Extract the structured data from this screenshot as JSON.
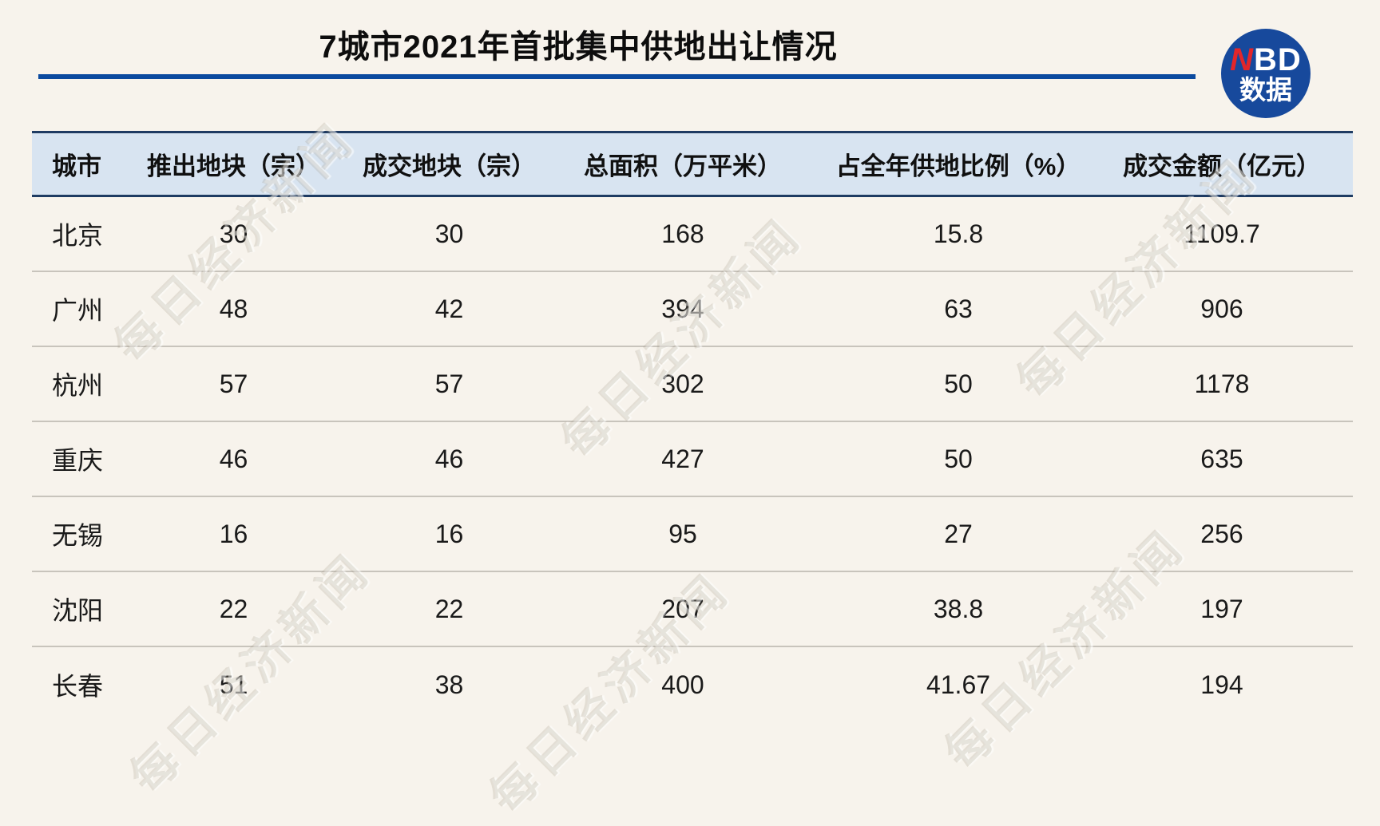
{
  "title": "7城市2021年首批集中供地出让情况",
  "logo": {
    "n": "N",
    "bd": "BD",
    "sub": "数据"
  },
  "watermark_text": "每日经济新闻",
  "colors": {
    "background": "#f7f3ec",
    "accent_blue": "#0b4a9f",
    "header_band": "#d8e4f1",
    "header_border": "#1e3b62",
    "row_divider": "#c8c4bc",
    "logo_blue": "#17499c",
    "logo_red": "#e3262a"
  },
  "chart_data": {
    "type": "table",
    "title": "7城市2021年首批集中供地出让情况",
    "columns": [
      "城市",
      "推出地块（宗）",
      "成交地块（宗）",
      "总面积（万平米）",
      "占全年供地比例（%）",
      "成交金额（亿元）"
    ],
    "rows": [
      [
        "北京",
        "30",
        "30",
        "168",
        "15.8",
        "1109.7"
      ],
      [
        "广州",
        "48",
        "42",
        "394",
        "63",
        "906"
      ],
      [
        "杭州",
        "57",
        "57",
        "302",
        "50",
        "1178"
      ],
      [
        "重庆",
        "46",
        "46",
        "427",
        "50",
        "635"
      ],
      [
        "无锡",
        "16",
        "16",
        "95",
        "27",
        "256"
      ],
      [
        "沈阳",
        "22",
        "22",
        "207",
        "38.8",
        "197"
      ],
      [
        "长春",
        "51",
        "38",
        "400",
        "41.67",
        "194"
      ]
    ]
  }
}
